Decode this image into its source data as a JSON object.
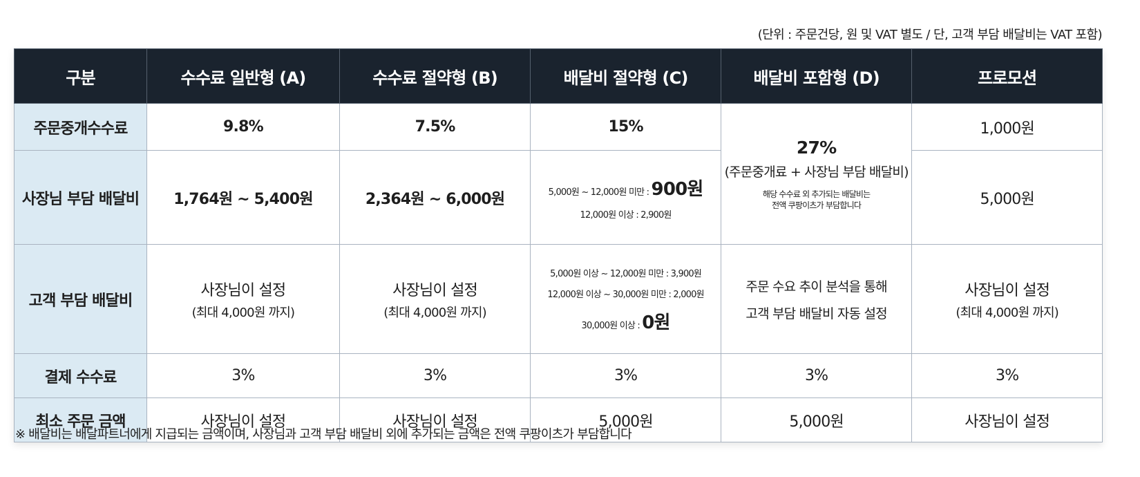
{
  "unit_note": "(단위 : 주문건당, 원 및 VAT 별도 / 단, 고객 부담 배달비는 VAT 포함)",
  "table": {
    "headers": [
      "구분",
      "수수료 일반형 (A)",
      "수수료 절약형 (B)",
      "배달비 절약형 (C)",
      "배달비 포함형 (D)",
      "프로모션"
    ],
    "rows": {
      "commission": {
        "label": "주문중개수수료",
        "a": "9.8%",
        "b": "7.5%",
        "c": "15%",
        "promo": "1,000원"
      },
      "owner_delivery": {
        "label": "사장님 부담 배달비",
        "a": "1,764원 ~ 5,400원",
        "b": "2,364원 ~ 6,000원",
        "c_line1_prefix": "5,000원 ~ 12,000원 미만 : ",
        "c_line1_value": "900원",
        "c_line2": "12,000원 이상 : 2,900원",
        "promo": "5,000원"
      },
      "d_merged": {
        "main": "27%",
        "sub": "(주문중개료 + 사장님 부담 배달비)",
        "note_line1": "해당 수수료 외 추가되는 배달비는",
        "note_line2": "전액 쿠팡이츠가 부담합니다"
      },
      "customer_delivery": {
        "label": "고객 부담 배달비",
        "a_line1": "사장님이 설정",
        "a_line2": "(최대 4,000원 까지)",
        "b_line1": "사장님이 설정",
        "b_line2": "(최대 4,000원 까지)",
        "c_line1": "5,000원 이상 ~ 12,000원 미만 : 3,900원",
        "c_line2": "12,000원 이상 ~ 30,000원 미만 : 2,000원",
        "c_line3_prefix": "30,000원 이상 : ",
        "c_line3_value": "0원",
        "d_line1": "주문 수요 추이 분석을 통해",
        "d_line2": "고객 부담 배달비 자동 설정",
        "promo_line1": "사장님이 설정",
        "promo_line2": "(최대 4,000원 까지)"
      },
      "payment_fee": {
        "label": "결제 수수료",
        "a": "3%",
        "b": "3%",
        "c": "3%",
        "d": "3%",
        "promo": "3%"
      },
      "min_order": {
        "label": "최소 주문 금액",
        "a": "사장님이 설정",
        "b": "사장님이 설정",
        "c": "5,000원",
        "d": "5,000원",
        "promo": "사장님이 설정"
      }
    }
  },
  "footnote": "※ 배달비는 배달파트너에게 지급되는 금액이며, 사장님과 고객 부담 배달비 외에 추가되는 금액은 전액 쿠팡이츠가 부담합니다",
  "colors": {
    "header_bg": "#1a232e",
    "label_bg": "#dbeaf3",
    "border": "#a9b3c0"
  }
}
